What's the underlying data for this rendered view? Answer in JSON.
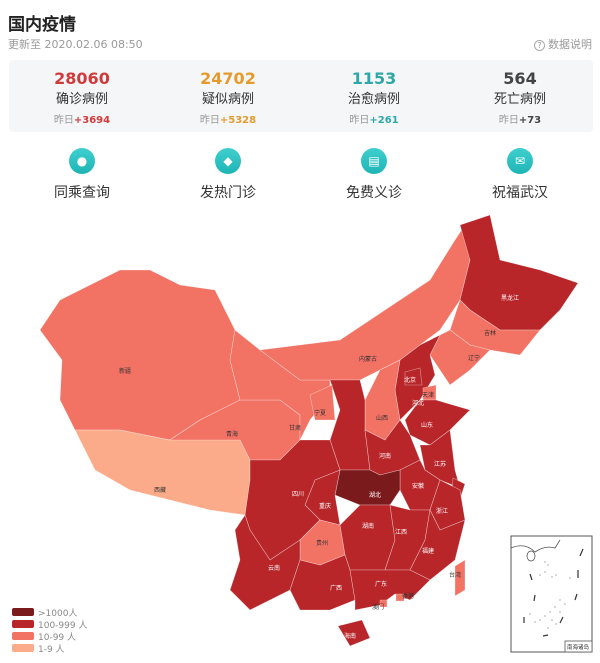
{
  "header": {
    "title": "国内疫情",
    "updated": "更新至 2020.02.06 08:50",
    "explain": "数据说明"
  },
  "stats": [
    {
      "value": "28060",
      "label": "确诊病例",
      "delta_prefix": "昨日",
      "delta": "+3694",
      "color": "#d03a3a"
    },
    {
      "value": "24702",
      "label": "疑似病例",
      "delta_prefix": "昨日",
      "delta": "+5328",
      "color": "#e59a2e"
    },
    {
      "value": "1153",
      "label": "治愈病例",
      "delta_prefix": "昨日",
      "delta": "+261",
      "color": "#2ea7a8"
    },
    {
      "value": "564",
      "label": "死亡病例",
      "delta_prefix": "昨日",
      "delta": "+73",
      "color": "#444444"
    }
  ],
  "actions": [
    {
      "label": "同乘查询",
      "icon": "person-icon"
    },
    {
      "label": "发热门诊",
      "icon": "clinic-icon"
    },
    {
      "label": "免费义诊",
      "icon": "chat-icon"
    },
    {
      "label": "祝福武汉",
      "icon": "envelope-icon"
    }
  ],
  "legend": [
    {
      "label": ">1000人",
      "color": "#7b1a1c"
    },
    {
      "label": "100-999 人",
      "color": "#b8262a"
    },
    {
      "label": "10-99 人",
      "color": "#f27264"
    },
    {
      "label": "1-9 人",
      "color": "#fbab89"
    }
  ],
  "map": {
    "inset_label": "南海诸岛",
    "provinces": [
      {
        "name": "新疆",
        "level": 2
      },
      {
        "name": "西藏",
        "level": 3
      },
      {
        "name": "青海",
        "level": 2
      },
      {
        "name": "甘肃",
        "level": 2
      },
      {
        "name": "内蒙古",
        "level": 2
      },
      {
        "name": "黑龙江",
        "level": 1
      },
      {
        "name": "吉林",
        "level": 2
      },
      {
        "name": "辽宁",
        "level": 2
      },
      {
        "name": "河北",
        "level": 1
      },
      {
        "name": "北京",
        "level": 1
      },
      {
        "name": "天津",
        "level": 2
      },
      {
        "name": "山西",
        "level": 2
      },
      {
        "name": "陕西",
        "level": 1
      },
      {
        "name": "宁夏",
        "level": 2
      },
      {
        "name": "山东",
        "level": 1
      },
      {
        "name": "河南",
        "level": 1
      },
      {
        "name": "江苏",
        "level": 1
      },
      {
        "name": "安徽",
        "level": 1
      },
      {
        "name": "上海",
        "level": 1
      },
      {
        "name": "浙江",
        "level": 1
      },
      {
        "name": "湖北",
        "level": 0
      },
      {
        "name": "重庆",
        "level": 1
      },
      {
        "name": "四川",
        "level": 1
      },
      {
        "name": "贵州",
        "level": 2
      },
      {
        "name": "湖南",
        "level": 1
      },
      {
        "name": "江西",
        "level": 1
      },
      {
        "name": "福建",
        "level": 1
      },
      {
        "name": "云南",
        "level": 1
      },
      {
        "name": "广西",
        "level": 1
      },
      {
        "name": "广东",
        "level": 1
      },
      {
        "name": "香港",
        "level": 2
      },
      {
        "name": "澳门",
        "level": 2
      },
      {
        "name": "海南",
        "level": 1
      },
      {
        "name": "台湾",
        "level": 2
      }
    ]
  }
}
